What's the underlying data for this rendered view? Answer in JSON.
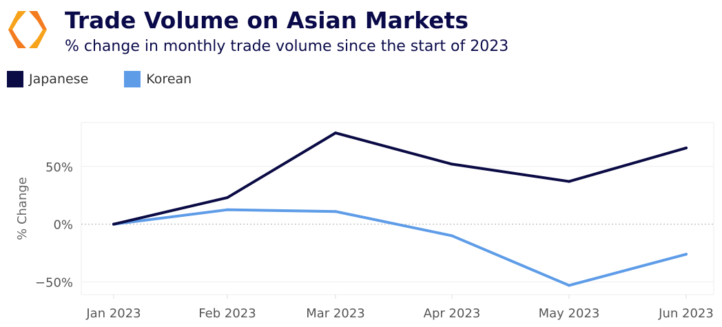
{
  "header": {
    "title": "Trade Volume on Asian Markets",
    "subtitle": "% change in monthly trade volume since the start of 2023"
  },
  "colors": {
    "japanese": "#0b0b45",
    "korean": "#5e9ce8",
    "logo1": "#f7a21b",
    "logo2": "#f47c20"
  },
  "chart_data": {
    "type": "line",
    "title": "Trade Volume on Asian Markets",
    "subtitle": "% change in monthly trade volume since the start of 2023",
    "xlabel": "",
    "ylabel": "% Change",
    "categories": [
      "Jan 2023",
      "Feb 2023",
      "Mar 2023",
      "Apr 2023",
      "May 2023",
      "Jun 2023"
    ],
    "series": [
      {
        "name": "Japanese",
        "values": [
          0,
          23,
          79,
          52,
          37,
          66
        ]
      },
      {
        "name": "Korean",
        "values": [
          0,
          12.5,
          11,
          -10,
          -53,
          -26
        ]
      }
    ],
    "yticks": [
      -50,
      0,
      50
    ],
    "ytick_labels": [
      "−50%",
      "0%",
      "50%"
    ],
    "ylim": [
      -61,
      88
    ],
    "grid": true,
    "legend_position": "top-left"
  }
}
